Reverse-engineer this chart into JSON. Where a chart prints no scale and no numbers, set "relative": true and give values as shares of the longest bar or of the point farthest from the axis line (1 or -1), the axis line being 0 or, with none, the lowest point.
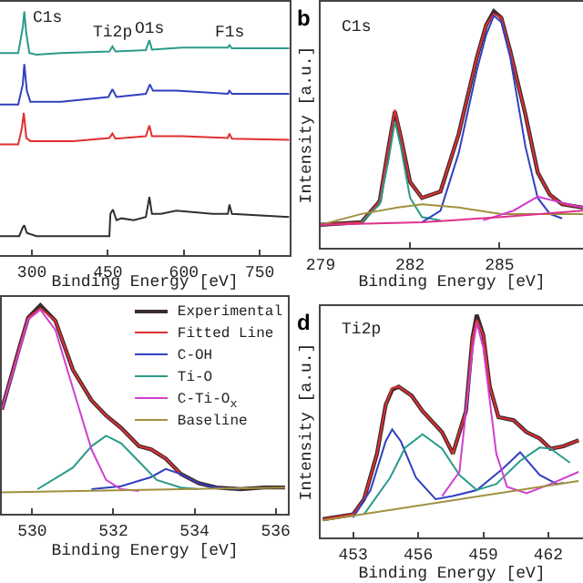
{
  "chart_data": [
    {
      "type": "line",
      "relative": true,
      "xlabel": "Binding Energy [eV]",
      "xlim": [
        237,
        809
      ],
      "xticks": [
        300,
        450,
        600,
        750
      ],
      "grid": false,
      "legend": false,
      "annotations": [
        "C1s",
        "Ti2p",
        "O1s",
        "F1s"
      ],
      "series": [
        {
          "color": "#2a9a8a",
          "x": [
            237,
            273,
            282,
            285,
            289,
            295,
            309,
            357,
            453,
            459,
            465,
            525,
            532,
            537,
            597,
            687,
            690,
            695,
            808
          ],
          "values": [
            0.83,
            0.83,
            0.935,
            1,
            0.909,
            0.83,
            0.823,
            0.83,
            0.836,
            0.857,
            0.836,
            0.842,
            0.883,
            0.844,
            0.852,
            0.852,
            0.862,
            0.849,
            0.849
          ]
        },
        {
          "color": "#3040c0",
          "x": [
            237,
            273,
            282,
            285,
            290,
            297,
            357,
            451,
            459,
            467,
            525,
            533,
            539,
            585,
            687,
            690,
            695,
            808
          ],
          "values": [
            0.618,
            0.618,
            0.701,
            0.784,
            0.675,
            0.629,
            0.629,
            0.649,
            0.681,
            0.649,
            0.662,
            0.701,
            0.675,
            0.675,
            0.662,
            0.675,
            0.662,
            0.662
          ]
        },
        {
          "color": "#e03030",
          "x": [
            237,
            273,
            280,
            284,
            289,
            297,
            381,
            453,
            459,
            465,
            525,
            532,
            537,
            597,
            687,
            690,
            695,
            808
          ],
          "values": [
            0.455,
            0.455,
            0.519,
            0.584,
            0.481,
            0.468,
            0.468,
            0.481,
            0.499,
            0.478,
            0.488,
            0.532,
            0.488,
            0.488,
            0.481,
            0.499,
            0.478,
            0.473
          ]
        },
        {
          "color": "#303030",
          "x": [
            237,
            275,
            282,
            285,
            290,
            309,
            453,
            455,
            460,
            467,
            477,
            501,
            525,
            532,
            537,
            555,
            585,
            657,
            687,
            690,
            695,
            808
          ],
          "values": [
            0.078,
            0.078,
            0.114,
            0.122,
            0.091,
            0.078,
            0.078,
            0.169,
            0.187,
            0.143,
            0.151,
            0.143,
            0.156,
            0.239,
            0.169,
            0.169,
            0.182,
            0.169,
            0.169,
            0.208,
            0.169,
            0.156
          ]
        }
      ]
    },
    {
      "type": "line",
      "relative": true,
      "title": "C1s",
      "ylabel": "Intensity [a.u.]",
      "xlabel": "Binding Energy [eV]",
      "xlim": [
        279,
        287.8
      ],
      "xticks": [
        279,
        282,
        285
      ],
      "grid": false,
      "legend": false,
      "annotations": [
        "b"
      ],
      "series": [
        {
          "color": "#3a2a30",
          "x": [
            279.0,
            280.37,
            280.98,
            281.28,
            281.49,
            281.69,
            282.0,
            282.4,
            283.02,
            283.63,
            284.24,
            284.55,
            284.81,
            285.06,
            285.36,
            285.87,
            286.28,
            286.69,
            287.1,
            287.8
          ],
          "values": [
            0.097,
            0.108,
            0.197,
            0.427,
            0.576,
            0.468,
            0.278,
            0.211,
            0.238,
            0.481,
            0.805,
            0.941,
            1,
            0.973,
            0.832,
            0.562,
            0.319,
            0.224,
            0.184,
            0.17
          ]
        },
        {
          "color": "#e03030",
          "x": [
            279.0,
            280.37,
            280.98,
            281.28,
            281.49,
            281.69,
            282.0,
            282.4,
            283.02,
            283.63,
            284.24,
            284.55,
            284.81,
            285.06,
            285.36,
            285.87,
            286.28,
            286.69,
            287.1,
            287.8
          ],
          "values": [
            0.097,
            0.108,
            0.197,
            0.427,
            0.584,
            0.468,
            0.278,
            0.211,
            0.238,
            0.481,
            0.805,
            0.941,
            0.989,
            0.973,
            0.832,
            0.562,
            0.319,
            0.224,
            0.184,
            0.17
          ]
        },
        {
          "color": "#2a9a8a",
          "x": [
            280.37,
            280.98,
            281.28,
            281.49,
            281.69,
            282.0,
            282.4,
            283.02
          ],
          "values": [
            0.108,
            0.184,
            0.373,
            0.535,
            0.427,
            0.211,
            0.13,
            0.116
          ]
        },
        {
          "color": "#3040c0",
          "x": [
            282.4,
            283.02,
            283.63,
            284.24,
            284.55,
            284.81,
            285.06,
            285.36,
            285.87,
            286.28,
            286.69,
            287.1
          ],
          "values": [
            0.108,
            0.157,
            0.4,
            0.751,
            0.9,
            0.981,
            0.954,
            0.805,
            0.427,
            0.211,
            0.143,
            0.124
          ]
        },
        {
          "color": "#a09040",
          "x": [
            279.0,
            280.37,
            281.59,
            282.4,
            283.63,
            285.06,
            286.48,
            287.8
          ],
          "values": [
            0.097,
            0.143,
            0.17,
            0.184,
            0.17,
            0.143,
            0.143,
            0.143
          ]
        },
        {
          "color": "#d040d0",
          "x": [
            284.45,
            285.47,
            286.28,
            286.89,
            287.8
          ],
          "values": [
            0.116,
            0.157,
            0.216,
            0.197,
            0.17
          ]
        },
        {
          "color": "#e0308a",
          "x": [
            279.0,
            282.4,
            285.06,
            287.8
          ],
          "values": [
            0.097,
            0.108,
            0.13,
            0.157
          ]
        }
      ]
    },
    {
      "type": "line",
      "relative": true,
      "xlabel": "Binding Energy [eV]",
      "xlim": [
        529.25,
        536.3
      ],
      "xticks": [
        530,
        532,
        534,
        536
      ],
      "grid": false,
      "legend": "top right",
      "series": [
        {
          "name": "Experimental",
          "color": "#3a2a30",
          "x": [
            529.25,
            529.7,
            529.9,
            530.2,
            530.57,
            531.0,
            531.46,
            531.82,
            532.19,
            532.63,
            532.93,
            533.29,
            533.66,
            534.1,
            534.54,
            535.13,
            535.72,
            536.23
          ],
          "values": [
            0.5,
            0.809,
            0.941,
            1,
            0.926,
            0.691,
            0.544,
            0.471,
            0.412,
            0.324,
            0.309,
            0.265,
            0.191,
            0.147,
            0.126,
            0.118,
            0.126,
            0.126
          ]
        },
        {
          "name": "Fitted Line",
          "color": "#e03030",
          "x": [
            529.25,
            529.7,
            529.9,
            530.2,
            530.57,
            531.0,
            531.46,
            531.82,
            532.19,
            532.63,
            532.93,
            533.29,
            533.66,
            534.1
          ],
          "values": [
            0.5,
            0.809,
            0.941,
            0.985,
            0.926,
            0.691,
            0.544,
            0.471,
            0.412,
            0.324,
            0.309,
            0.265,
            0.191,
            0.147
          ]
        },
        {
          "name": "C-OH",
          "color": "#3040c0",
          "x": [
            531.46,
            532.19,
            532.93,
            533.29,
            533.66,
            534.1,
            534.54,
            535.13
          ],
          "values": [
            0.118,
            0.132,
            0.176,
            0.215,
            0.191,
            0.147,
            0.126,
            0.118
          ]
        },
        {
          "name": "Ti-O",
          "color": "#2a9a8a",
          "x": [
            530.13,
            531.0,
            531.46,
            531.82,
            532.19,
            532.63,
            533.07,
            533.66,
            534.1
          ],
          "values": [
            0.118,
            0.221,
            0.324,
            0.374,
            0.338,
            0.25,
            0.162,
            0.126,
            0.118
          ]
        },
        {
          "name": "C-Ti-O$_{x}$",
          "color": "#d040d0",
          "x": [
            529.25,
            529.7,
            529.9,
            530.2,
            530.57,
            531.0,
            531.46,
            531.82,
            532.19,
            532.63
          ],
          "values": [
            0.5,
            0.794,
            0.932,
            0.979,
            0.882,
            0.603,
            0.309,
            0.162,
            0.118,
            0.109
          ]
        },
        {
          "name": "Baseline",
          "color": "#a09040",
          "x": [
            529.25,
            536.23
          ],
          "values": [
            0.103,
            0.126
          ]
        }
      ]
    },
    {
      "type": "line",
      "relative": true,
      "title": "Ti2p",
      "ylabel": "Intensity [a.u.]",
      "xlabel": "Binding Energy [eV]",
      "xlim": [
        451.5,
        463.6
      ],
      "xticks": [
        453,
        456,
        459,
        462
      ],
      "grid": false,
      "legend": false,
      "annotations": [
        "d"
      ],
      "series": [
        {
          "color": "#3a2a30",
          "x": [
            451.6,
            453.0,
            453.5,
            454.1,
            454.5,
            454.8,
            455.1,
            455.7,
            456.2,
            457.1,
            457.6,
            458.2,
            458.5,
            458.7,
            459.0,
            459.3,
            459.7,
            460.4,
            461.0,
            461.6,
            462.1,
            462.7,
            463.4
          ],
          "values": [
            0.082,
            0.104,
            0.172,
            0.377,
            0.596,
            0.664,
            0.678,
            0.637,
            0.568,
            0.473,
            0.377,
            0.568,
            0.896,
            1,
            0.91,
            0.678,
            0.541,
            0.527,
            0.473,
            0.445,
            0.399,
            0.41,
            0.437
          ]
        },
        {
          "color": "#e03030",
          "x": [
            451.6,
            453.0,
            453.5,
            454.1,
            454.5,
            454.8,
            455.1,
            455.7,
            456.2,
            457.1,
            457.6,
            458.2,
            458.5,
            458.7,
            459.0,
            459.3,
            459.7,
            460.4,
            461.0,
            461.6,
            462.1,
            462.7,
            463.4
          ],
          "values": [
            0.082,
            0.104,
            0.172,
            0.377,
            0.596,
            0.672,
            0.678,
            0.637,
            0.568,
            0.473,
            0.377,
            0.568,
            0.896,
            0.978,
            0.91,
            0.678,
            0.541,
            0.527,
            0.473,
            0.445,
            0.399,
            0.41,
            0.437
          ]
        },
        {
          "color": "#3040c0",
          "x": [
            453.0,
            453.8,
            454.5,
            454.8,
            455.2,
            455.9,
            456.8,
            457.6,
            458.7,
            459.9,
            460.7,
            461.6,
            462.4,
            462.7
          ],
          "values": [
            0.09,
            0.213,
            0.432,
            0.486,
            0.432,
            0.268,
            0.172,
            0.186,
            0.213,
            0.309,
            0.383,
            0.281,
            0.24,
            0.246
          ]
        },
        {
          "color": "#2a9a8a",
          "x": [
            453.5,
            454.7,
            455.4,
            456.2,
            457.1,
            457.9,
            458.7,
            459.6,
            460.7,
            461.6,
            462.1,
            463.0
          ],
          "values": [
            0.104,
            0.268,
            0.404,
            0.464,
            0.399,
            0.281,
            0.213,
            0.24,
            0.344,
            0.404,
            0.399,
            0.336
          ]
        },
        {
          "color": "#d040d0",
          "x": [
            457.1,
            457.9,
            458.5,
            458.7,
            459.0,
            459.6,
            460.1,
            461.0,
            462.1,
            463.4
          ],
          "values": [
            0.186,
            0.295,
            0.842,
            0.964,
            0.855,
            0.377,
            0.227,
            0.199,
            0.24,
            0.295
          ]
        },
        {
          "color": "#a09040",
          "x": [
            451.6,
            463.4
          ],
          "values": [
            0.077,
            0.254
          ]
        }
      ]
    }
  ]
}
